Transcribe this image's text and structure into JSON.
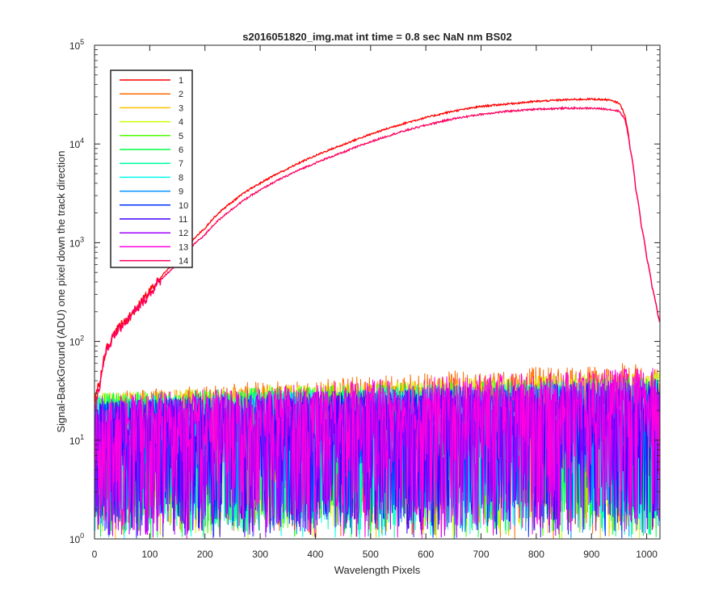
{
  "chart_data": {
    "type": "line",
    "title": "s2016051820_img.mat int time = 0.8 sec  NaN nm BS02",
    "xlabel": "Wavelength Pixels",
    "ylabel": "Signal-BackGround (ADU) one pixel down the track direction",
    "xlim": [
      0,
      1024
    ],
    "ylim": [
      1,
      100000
    ],
    "yscale": "log",
    "grid": false,
    "legend_position": "top-left",
    "x_ticks": [
      "0",
      "100",
      "200",
      "300",
      "400",
      "500",
      "600",
      "700",
      "800",
      "900",
      "1000"
    ],
    "y_ticks": [
      {
        "base": "10",
        "exp": "0"
      },
      {
        "base": "10",
        "exp": "1"
      },
      {
        "base": "10",
        "exp": "2"
      },
      {
        "base": "10",
        "exp": "3"
      },
      {
        "base": "10",
        "exp": "4"
      },
      {
        "base": "10",
        "exp": "5"
      }
    ],
    "series": [
      {
        "name": "1",
        "color": "#ff0000",
        "kind": "signal",
        "x": [
          0,
          10,
          20,
          40,
          60,
          80,
          100,
          120,
          150,
          200,
          250,
          300,
          350,
          400,
          450,
          500,
          550,
          600,
          650,
          700,
          750,
          800,
          850,
          900,
          930,
          950,
          960,
          970,
          980,
          990,
          1000,
          1010,
          1020,
          1023
        ],
        "y": [
          25,
          40,
          80,
          130,
          170,
          230,
          320,
          450,
          650,
          1400,
          2600,
          4000,
          5600,
          7600,
          9800,
          12500,
          15500,
          18500,
          21500,
          24000,
          25500,
          27000,
          28000,
          28500,
          28000,
          26000,
          20000,
          9000,
          3500,
          1500,
          700,
          350,
          190,
          160
        ]
      },
      {
        "name": "2",
        "color": "#ff6a00",
        "kind": "noise",
        "x": [
          0,
          1024
        ],
        "y": [
          12,
          25
        ]
      },
      {
        "name": "3",
        "color": "#ffc000",
        "kind": "noise",
        "x": [
          0,
          1024
        ],
        "y": [
          12,
          20
        ]
      },
      {
        "name": "4",
        "color": "#c8ff00",
        "kind": "noise",
        "x": [
          0,
          1024
        ],
        "y": [
          12,
          20
        ]
      },
      {
        "name": "5",
        "color": "#4cff00",
        "kind": "noise",
        "x": [
          0,
          1024
        ],
        "y": [
          12,
          18
        ]
      },
      {
        "name": "6",
        "color": "#00ff40",
        "kind": "noise",
        "x": [
          0,
          1024
        ],
        "y": [
          12,
          18
        ]
      },
      {
        "name": "7",
        "color": "#00ffa0",
        "kind": "noise",
        "x": [
          0,
          1024
        ],
        "y": [
          11,
          17
        ]
      },
      {
        "name": "8",
        "color": "#00fff0",
        "kind": "noise",
        "x": [
          0,
          1024
        ],
        "y": [
          11,
          17
        ]
      },
      {
        "name": "9",
        "color": "#0090ff",
        "kind": "noise",
        "x": [
          0,
          1024
        ],
        "y": [
          10,
          16
        ]
      },
      {
        "name": "10",
        "color": "#0030ff",
        "kind": "noise",
        "x": [
          0,
          1024
        ],
        "y": [
          10,
          16
        ]
      },
      {
        "name": "11",
        "color": "#4000ff",
        "kind": "noise",
        "x": [
          0,
          1024
        ],
        "y": [
          10,
          16
        ]
      },
      {
        "name": "12",
        "color": "#a000ff",
        "kind": "noise",
        "x": [
          0,
          1024
        ],
        "y": [
          10,
          17
        ]
      },
      {
        "name": "13",
        "color": "#ff00e0",
        "kind": "noise",
        "x": [
          0,
          1024
        ],
        "y": [
          11,
          22
        ]
      },
      {
        "name": "14",
        "color": "#ff0060",
        "kind": "signal",
        "x": [
          0,
          10,
          20,
          40,
          60,
          80,
          100,
          120,
          150,
          200,
          250,
          300,
          350,
          400,
          450,
          500,
          550,
          600,
          650,
          700,
          750,
          800,
          850,
          900,
          930,
          950,
          960,
          970,
          980,
          990,
          1000,
          1010,
          1020,
          1023
        ],
        "y": [
          22,
          36,
          75,
          125,
          165,
          220,
          300,
          420,
          600,
          1200,
          2200,
          3400,
          4800,
          6400,
          8200,
          10500,
          13000,
          15500,
          18000,
          20000,
          21500,
          22500,
          23000,
          23000,
          22500,
          21500,
          18000,
          9000,
          3500,
          1500,
          700,
          350,
          190,
          160
        ]
      }
    ]
  }
}
